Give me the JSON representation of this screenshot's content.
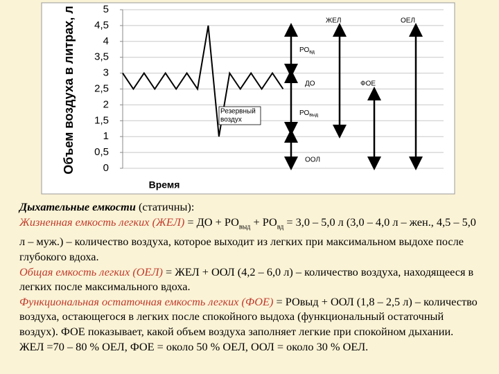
{
  "chart_data": {
    "type": "line",
    "ylabel": "Объем воздуха в литрах, л",
    "xlabel": "Время",
    "x": [
      0,
      1,
      2,
      3,
      4,
      5,
      6,
      7,
      8,
      9,
      10,
      11,
      12,
      13,
      14,
      15
    ],
    "series": [
      {
        "name": "Объем",
        "color": "#000000",
        "values": [
          3,
          2.5,
          3,
          2.5,
          3,
          2.5,
          3,
          2.5,
          4.5,
          1,
          3,
          2.5,
          3,
          2.5,
          3,
          2.5
        ]
      }
    ],
    "xlim": [
      0,
      30
    ],
    "ylim": [
      0,
      5
    ],
    "yticks": [
      0,
      {
        "value": 0.5,
        "label": "0,5"
      },
      1,
      {
        "value": 1.5,
        "label": "1,5"
      },
      2,
      {
        "value": 2.5,
        "label": "2,5"
      },
      3,
      {
        "value": 3.5,
        "label": "3,5"
      },
      4,
      {
        "value": 4.5,
        "label": "4,5"
      },
      5
    ],
    "grid": true,
    "annotations": {
      "reserve": [
        "Резервный",
        "воздух"
      ],
      "rovd": [
        "РО",
        "вд"
      ],
      "do": "ДО",
      "rovyd": [
        "РО",
        "выд"
      ],
      "ool": "ООЛ",
      "zhel": "ЖЕЛ",
      "oel": "ОЕЛ",
      "foe": "ФОЕ"
    }
  },
  "text": {
    "heading": "Дыхательные емкости",
    "heading_note": " (статичны):",
    "definitions": [
      {
        "term": "Жизненная емкость легких (ЖЕЛ)",
        "body": [
          " = ДО + РО",
          "выд",
          " + РО",
          "вд",
          " = 3,0 – 5,0 л (3,0 – 4,0 л – жен., 4,5 – 5,0 л – муж.) – количество воздуха, которое выходит из легких при максимальном выдохе после глубокого вдоха."
        ]
      },
      {
        "term": "Общая емкость легких (ОЕЛ)",
        "body": [
          " = ЖЕЛ + ООЛ (4,2 – 6,0 л) – количество воздуха, находящееся в легких после максимального вдоха."
        ]
      },
      {
        "term": "Функциональная остаточная емкость легких (ФОЕ)",
        "body": [
          " = РОвыд + ООЛ (1,8 – 2,5 л) – количество воздуха, остающегося в легких после спокойного выдоха (функциональный остаточный воздух). ФОЕ показывает, какой объем воздуха заполняет легкие при спокойном дыхании."
        ]
      }
    ],
    "summary": "ЖЕЛ =70 – 80 % ОЕЛ, ФОЕ = около 50 % ОЕЛ, ООЛ = около 30 % ОЕЛ."
  }
}
